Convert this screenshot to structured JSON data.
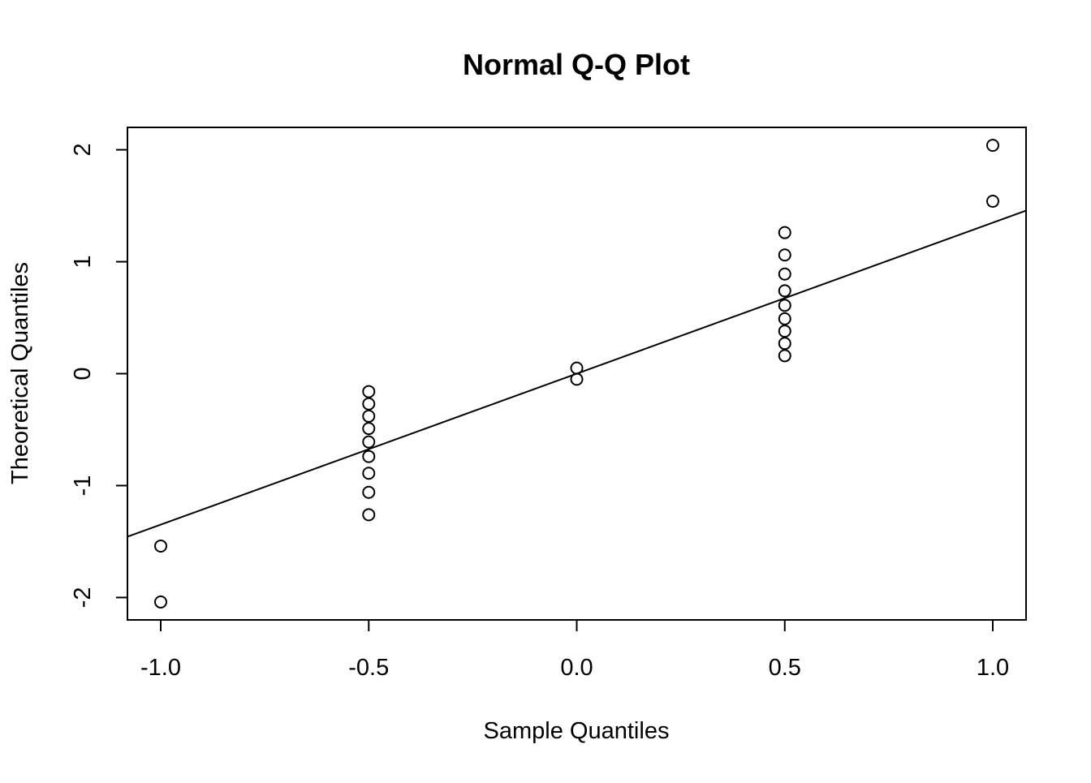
{
  "chart_data": {
    "type": "scatter",
    "title": "Normal Q-Q Plot",
    "xlabel": "Sample Quantiles",
    "ylabel": "Theoretical Quantiles",
    "xlim": [
      -1.08,
      1.08
    ],
    "ylim": [
      -2.2,
      2.2
    ],
    "x_ticks": [
      -1.0,
      -0.5,
      0.0,
      0.5,
      1.0
    ],
    "x_tick_labels": [
      "-1.0",
      "-0.5",
      "0.0",
      "0.5",
      "1.0"
    ],
    "y_ticks": [
      -2,
      -1,
      0,
      1,
      2
    ],
    "y_tick_labels": [
      "-2",
      "-1",
      "0",
      "1",
      "2"
    ],
    "grid": false,
    "legend": "none",
    "points": [
      {
        "x": -1.0,
        "y": -2.04
      },
      {
        "x": -1.0,
        "y": -1.54
      },
      {
        "x": -0.5,
        "y": -1.26
      },
      {
        "x": -0.5,
        "y": -1.06
      },
      {
        "x": -0.5,
        "y": -0.89
      },
      {
        "x": -0.5,
        "y": -0.74
      },
      {
        "x": -0.5,
        "y": -0.61
      },
      {
        "x": -0.5,
        "y": -0.49
      },
      {
        "x": -0.5,
        "y": -0.38
      },
      {
        "x": -0.5,
        "y": -0.27
      },
      {
        "x": -0.5,
        "y": -0.16
      },
      {
        "x": 0.0,
        "y": -0.05
      },
      {
        "x": 0.0,
        "y": 0.05
      },
      {
        "x": 0.5,
        "y": 0.16
      },
      {
        "x": 0.5,
        "y": 0.27
      },
      {
        "x": 0.5,
        "y": 0.38
      },
      {
        "x": 0.5,
        "y": 0.49
      },
      {
        "x": 0.5,
        "y": 0.61
      },
      {
        "x": 0.5,
        "y": 0.74
      },
      {
        "x": 0.5,
        "y": 0.89
      },
      {
        "x": 0.5,
        "y": 1.06
      },
      {
        "x": 0.5,
        "y": 1.26
      },
      {
        "x": 1.0,
        "y": 1.54
      },
      {
        "x": 1.0,
        "y": 2.04
      }
    ],
    "reference_line": {
      "intercept": 0.0,
      "slope": 1.349
    },
    "colors": {
      "points": "#000000",
      "line": "#000000",
      "axes": "#000000"
    }
  }
}
